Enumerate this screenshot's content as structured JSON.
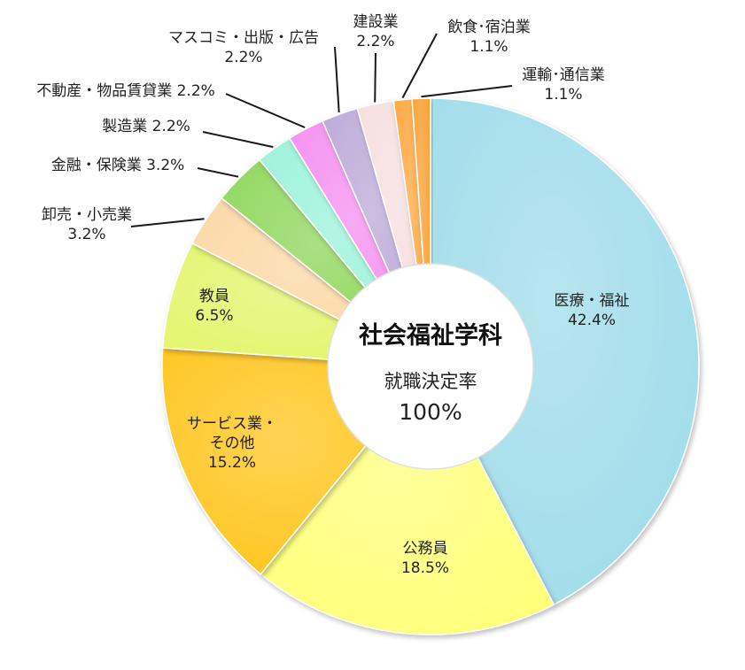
{
  "center": {
    "title": "社会福祉学科",
    "subtitle": "就職決定率",
    "rate": "100%"
  },
  "chart_data": {
    "type": "pie",
    "style": "donut",
    "start": "12 o'clock, clockwise",
    "slices": [
      {
        "label": "医療・福祉",
        "value": 42.4,
        "value_text": "42.4%",
        "color": "#A0DCEA"
      },
      {
        "label": "公務員",
        "value": 18.5,
        "value_text": "18.5%",
        "color": "#FFFF7A"
      },
      {
        "label": "サービス業・\nその他",
        "value": 15.2,
        "value_text": "15.2%",
        "color": "#FFC51A"
      },
      {
        "label": "教員",
        "value": 6.5,
        "value_text": "6.5%",
        "color": "#E2F56A"
      },
      {
        "label": "卸売・小売業",
        "value": 3.2,
        "value_text": "3.2%",
        "color": "#FBD7A4"
      },
      {
        "label": "金融・保険業",
        "value": 3.2,
        "value_text": "3.2%",
        "color": "#8ED65A"
      },
      {
        "label": "製造業",
        "value": 2.2,
        "value_text": "2.2%",
        "color": "#9AF2DA"
      },
      {
        "label": "不動産・物品賃貸業",
        "value": 2.2,
        "value_text": "2.2%",
        "color": "#F58EF0"
      },
      {
        "label": "マスコミ・出版・広告",
        "value": 2.2,
        "value_text": "2.2%",
        "color": "#BBA8D8"
      },
      {
        "label": "建設業",
        "value": 2.2,
        "value_text": "2.2%",
        "color": "#F6DEDE"
      },
      {
        "label": "飲食･宿泊業",
        "value": 1.1,
        "value_text": "1.1%",
        "color": "#FFA53A"
      },
      {
        "label": "運輸･通信業",
        "value": 1.1,
        "value_text": "1.1%",
        "color": "#F9A030"
      }
    ]
  }
}
